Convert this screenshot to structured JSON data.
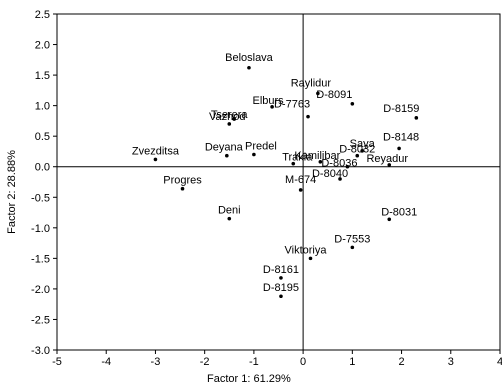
{
  "chart_data": {
    "type": "scatter",
    "xlabel": "Factor 1: 61.29%",
    "ylabel": "Factor 2: 28.88%",
    "xlim": [
      -5,
      4
    ],
    "ylim": [
      -3.0,
      2.5
    ],
    "xticks": [
      "-5",
      "-4",
      "-3",
      "-2",
      "-1",
      "0",
      "1",
      "2",
      "3",
      "4"
    ],
    "yticks": [
      "2.5",
      "2.0",
      "1.5",
      "1.0",
      "0.5",
      "0.0",
      "-0.5",
      "-1.0",
      "-1.5",
      "-2.0",
      "-2.5",
      "-3.0"
    ],
    "reference_lines": {
      "x": 0,
      "y": 0
    },
    "grid": false,
    "points": [
      {
        "label": "Beloslava",
        "x": -1.1,
        "y": 1.62
      },
      {
        "label": "Raylidur",
        "x": 0.3,
        "y": 1.2
      },
      {
        "label": "D-8091",
        "x": 1.0,
        "y": 1.03
      },
      {
        "label": "D-8159",
        "x": 2.3,
        "y": 0.8
      },
      {
        "label": "Elburs",
        "x": -0.63,
        "y": 0.98
      },
      {
        "label": "D-7763",
        "x": 0.1,
        "y": 0.82
      },
      {
        "label": "Tserera",
        "x": -1.4,
        "y": 0.78
      },
      {
        "label": "Vazhod",
        "x": -1.5,
        "y": 0.7
      },
      {
        "label": "Zvezditsa",
        "x": -3.0,
        "y": 0.12
      },
      {
        "label": "Deyana",
        "x": -1.55,
        "y": 0.18
      },
      {
        "label": "Predel",
        "x": -1.0,
        "y": 0.2
      },
      {
        "label": "Trakia",
        "x": -0.2,
        "y": 0.05
      },
      {
        "label": "Kamilibar",
        "x": 0.35,
        "y": 0.08
      },
      {
        "label": "Saya",
        "x": 1.2,
        "y": 0.26
      },
      {
        "label": "D-8032",
        "x": 1.1,
        "y": 0.18
      },
      {
        "label": "D-8148",
        "x": 1.95,
        "y": 0.3
      },
      {
        "label": "Reyadur",
        "x": 1.75,
        "y": 0.03
      },
      {
        "label": "D-8036",
        "x": 0.9,
        "y": 0.0
      },
      {
        "label": "D-8040",
        "x": 0.75,
        "y": -0.2
      },
      {
        "label": "Progres",
        "x": -2.45,
        "y": -0.36
      },
      {
        "label": "M-674",
        "x": -0.05,
        "y": -0.38
      },
      {
        "label": "Deni",
        "x": -1.5,
        "y": -0.85
      },
      {
        "label": "D-8031",
        "x": 1.75,
        "y": -0.86
      },
      {
        "label": "D-7553",
        "x": 1.0,
        "y": -1.32
      },
      {
        "label": "Viktoriya",
        "x": 0.15,
        "y": -1.5
      },
      {
        "label": "D-8161",
        "x": -0.45,
        "y": -1.82
      },
      {
        "label": "D-8195",
        "x": -0.45,
        "y": -2.12
      }
    ]
  }
}
